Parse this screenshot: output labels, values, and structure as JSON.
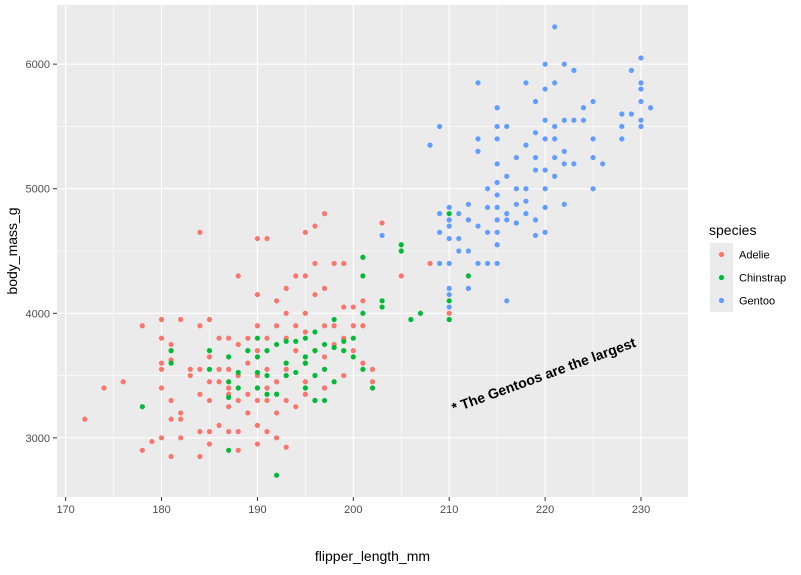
{
  "chart_data": {
    "type": "scatter",
    "title": "",
    "xlabel": "flipper_length_mm",
    "ylabel": "body_mass_g",
    "xlim": [
      169.1,
      234.9
    ],
    "ylim": [
      2525,
      6475
    ],
    "x_ticks": [
      170,
      180,
      190,
      200,
      210,
      220,
      230
    ],
    "y_ticks": [
      3000,
      4000,
      5000,
      6000
    ],
    "grid": true,
    "legend": {
      "title": "species",
      "position": "right",
      "entries": [
        "Adelie",
        "Chinstrap",
        "Gentoo"
      ]
    },
    "annotation": {
      "text": "* The Gentoos are the largest",
      "x": 210.5,
      "y": 3200,
      "angle_deg": -20
    },
    "colors": {
      "Adelie": "#F8766D",
      "Chinstrap": "#00BA38",
      "Gentoo": "#619CFF",
      "panel": "#EBEBEB",
      "grid": "#FFFFFF"
    },
    "series": [
      {
        "name": "Adelie",
        "points": [
          [
            172,
            3150
          ],
          [
            174,
            3400
          ],
          [
            176,
            3450
          ],
          [
            178,
            3900
          ],
          [
            178,
            2900
          ],
          [
            179,
            2970
          ],
          [
            180,
            3950
          ],
          [
            180,
            3800
          ],
          [
            180,
            3600
          ],
          [
            180,
            3550
          ],
          [
            180,
            3400
          ],
          [
            180,
            3000
          ],
          [
            181,
            3750
          ],
          [
            181,
            3700
          ],
          [
            181,
            3625
          ],
          [
            181,
            3300
          ],
          [
            181,
            3150
          ],
          [
            181,
            2850
          ],
          [
            182,
            3950
          ],
          [
            182,
            3200
          ],
          [
            182,
            3150
          ],
          [
            182,
            3000
          ],
          [
            183,
            3550
          ],
          [
            183,
            3500
          ],
          [
            184,
            4650
          ],
          [
            184,
            3550
          ],
          [
            184,
            3350
          ],
          [
            184,
            3050
          ],
          [
            184,
            2850
          ],
          [
            184,
            3900
          ],
          [
            185,
            3950
          ],
          [
            185,
            3650
          ],
          [
            185,
            3450
          ],
          [
            185,
            3300
          ],
          [
            185,
            3050
          ],
          [
            185,
            2950
          ],
          [
            186,
            3800
          ],
          [
            186,
            3550
          ],
          [
            186,
            3450
          ],
          [
            186,
            3100
          ],
          [
            187,
            3800
          ],
          [
            187,
            3550
          ],
          [
            187,
            3400
          ],
          [
            187,
            3250
          ],
          [
            187,
            3350
          ],
          [
            187,
            3050
          ],
          [
            188,
            4300
          ],
          [
            188,
            3750
          ],
          [
            188,
            3500
          ],
          [
            188,
            3300
          ],
          [
            188,
            3050
          ],
          [
            188,
            2900
          ],
          [
            189,
            3800
          ],
          [
            189,
            3600
          ],
          [
            189,
            3350
          ],
          [
            189,
            3200
          ],
          [
            190,
            4600
          ],
          [
            190,
            4150
          ],
          [
            190,
            3900
          ],
          [
            190,
            3700
          ],
          [
            190,
            3500
          ],
          [
            190,
            3400
          ],
          [
            190,
            3300
          ],
          [
            190,
            3100
          ],
          [
            190,
            2950
          ],
          [
            191,
            4600
          ],
          [
            191,
            3800
          ],
          [
            191,
            3550
          ],
          [
            191,
            3400
          ],
          [
            191,
            3300
          ],
          [
            191,
            3050
          ],
          [
            192,
            3450
          ],
          [
            192,
            3200
          ],
          [
            192,
            3000
          ],
          [
            192,
            3900
          ],
          [
            192,
            4100
          ],
          [
            193,
            4200
          ],
          [
            193,
            4000
          ],
          [
            193,
            3800
          ],
          [
            193,
            3550
          ],
          [
            193,
            3500
          ],
          [
            193,
            3300
          ],
          [
            193,
            2925
          ],
          [
            194,
            4300
          ],
          [
            194,
            3900
          ],
          [
            194,
            3700
          ],
          [
            194,
            3250
          ],
          [
            195,
            4650
          ],
          [
            195,
            4300
          ],
          [
            195,
            4000
          ],
          [
            195,
            3850
          ],
          [
            195,
            3350
          ],
          [
            195,
            3600
          ],
          [
            195,
            3450
          ],
          [
            196,
            4700
          ],
          [
            196,
            4400
          ],
          [
            196,
            4150
          ],
          [
            196,
            3700
          ],
          [
            196,
            3500
          ],
          [
            196,
            3300
          ],
          [
            197,
            4800
          ],
          [
            197,
            4200
          ],
          [
            197,
            3900
          ],
          [
            197,
            3650
          ],
          [
            197,
            3400
          ],
          [
            198,
            4400
          ],
          [
            198,
            3900
          ],
          [
            198,
            3750
          ],
          [
            199,
            4400
          ],
          [
            199,
            4050
          ],
          [
            199,
            3800
          ],
          [
            199,
            3500
          ],
          [
            200,
            4050
          ],
          [
            200,
            3900
          ],
          [
            200,
            3700
          ],
          [
            201,
            4100
          ],
          [
            201,
            3900
          ],
          [
            201,
            3600
          ],
          [
            202,
            3550
          ],
          [
            202,
            3450
          ],
          [
            203,
            4725
          ],
          [
            205,
            4300
          ],
          [
            208,
            4400
          ],
          [
            210,
            4000
          ],
          [
            210,
            3950
          ]
        ]
      },
      {
        "name": "Chinstrap",
        "points": [
          [
            178,
            3250
          ],
          [
            181,
            3700
          ],
          [
            181,
            3600
          ],
          [
            185,
            3700
          ],
          [
            185,
            3550
          ],
          [
            187,
            3650
          ],
          [
            187,
            3450
          ],
          [
            187,
            3325
          ],
          [
            187,
            2900
          ],
          [
            188,
            3525
          ],
          [
            188,
            3400
          ],
          [
            189,
            3700
          ],
          [
            190,
            3800
          ],
          [
            190,
            3650
          ],
          [
            190,
            3525
          ],
          [
            190,
            3400
          ],
          [
            191,
            3700
          ],
          [
            191,
            3500
          ],
          [
            191,
            3350
          ],
          [
            192,
            3750
          ],
          [
            192,
            3350
          ],
          [
            192,
            2700
          ],
          [
            193,
            3775
          ],
          [
            193,
            3600
          ],
          [
            193,
            3500
          ],
          [
            194,
            3775
          ],
          [
            194,
            3525
          ],
          [
            195,
            3800
          ],
          [
            195,
            3650
          ],
          [
            195,
            3600
          ],
          [
            195,
            3400
          ],
          [
            196,
            3850
          ],
          [
            196,
            3700
          ],
          [
            196,
            3500
          ],
          [
            196,
            3300
          ],
          [
            197,
            3750
          ],
          [
            197,
            3550
          ],
          [
            197,
            3300
          ],
          [
            198,
            3950
          ],
          [
            198,
            3725
          ],
          [
            198,
            3450
          ],
          [
            199,
            3775
          ],
          [
            199,
            3700
          ],
          [
            200,
            3800
          ],
          [
            200,
            3650
          ],
          [
            201,
            4450
          ],
          [
            201,
            4300
          ],
          [
            201,
            4000
          ],
          [
            201,
            3550
          ],
          [
            202,
            3400
          ],
          [
            203,
            4100
          ],
          [
            203,
            4050
          ],
          [
            205,
            4550
          ],
          [
            205,
            4500
          ],
          [
            206,
            3950
          ],
          [
            207,
            4000
          ],
          [
            210,
            4800
          ],
          [
            210,
            4100
          ],
          [
            210,
            3950
          ],
          [
            212,
            4300
          ]
        ]
      },
      {
        "name": "Gentoo",
        "points": [
          [
            203,
            4625
          ],
          [
            208,
            5350
          ],
          [
            209,
            5500
          ],
          [
            209,
            4800
          ],
          [
            209,
            4650
          ],
          [
            209,
            4400
          ],
          [
            210,
            4850
          ],
          [
            210,
            4750
          ],
          [
            210,
            4700
          ],
          [
            210,
            4600
          ],
          [
            210,
            4400
          ],
          [
            210,
            4200
          ],
          [
            210,
            4150
          ],
          [
            210,
            4050
          ],
          [
            211,
            4800
          ],
          [
            211,
            4600
          ],
          [
            211,
            4500
          ],
          [
            212,
            4875
          ],
          [
            212,
            4750
          ],
          [
            212,
            4500
          ],
          [
            212,
            4200
          ],
          [
            213,
            5850
          ],
          [
            213,
            5400
          ],
          [
            213,
            5300
          ],
          [
            213,
            4700
          ],
          [
            213,
            4400
          ],
          [
            214,
            5000
          ],
          [
            214,
            4850
          ],
          [
            214,
            4650
          ],
          [
            214,
            4400
          ],
          [
            215,
            5650
          ],
          [
            215,
            5500
          ],
          [
            215,
            5400
          ],
          [
            215,
            5200
          ],
          [
            215,
            5050
          ],
          [
            215,
            4950
          ],
          [
            215,
            4850
          ],
          [
            215,
            4750
          ],
          [
            215,
            4650
          ],
          [
            215,
            4550
          ],
          [
            215,
            4400
          ],
          [
            216,
            5500
          ],
          [
            216,
            5100
          ],
          [
            216,
            4800
          ],
          [
            216,
            4750
          ],
          [
            216,
            4100
          ],
          [
            217,
            5250
          ],
          [
            217,
            5000
          ],
          [
            217,
            4875
          ],
          [
            217,
            4725
          ],
          [
            218,
            5850
          ],
          [
            218,
            5350
          ],
          [
            218,
            5000
          ],
          [
            218,
            4900
          ],
          [
            218,
            4800
          ],
          [
            219,
            5700
          ],
          [
            219,
            5450
          ],
          [
            219,
            5250
          ],
          [
            219,
            5150
          ],
          [
            219,
            4750
          ],
          [
            219,
            4625
          ],
          [
            220,
            6000
          ],
          [
            220,
            5800
          ],
          [
            220,
            5550
          ],
          [
            220,
            5400
          ],
          [
            220,
            5150
          ],
          [
            220,
            5000
          ],
          [
            220,
            4850
          ],
          [
            220,
            4650
          ],
          [
            221,
            6300
          ],
          [
            221,
            5850
          ],
          [
            221,
            5500
          ],
          [
            221,
            5400
          ],
          [
            221,
            5250
          ],
          [
            221,
            5100
          ],
          [
            222,
            6000
          ],
          [
            222,
            5550
          ],
          [
            222,
            5300
          ],
          [
            222,
            4875
          ],
          [
            222,
            5200
          ],
          [
            223,
            5950
          ],
          [
            223,
            5550
          ],
          [
            223,
            5200
          ],
          [
            224,
            5650
          ],
          [
            224,
            5550
          ],
          [
            225,
            5700
          ],
          [
            225,
            5400
          ],
          [
            225,
            5250
          ],
          [
            225,
            5000
          ],
          [
            226,
            5200
          ],
          [
            228,
            5600
          ],
          [
            228,
            5500
          ],
          [
            228,
            5400
          ],
          [
            229,
            5950
          ],
          [
            229,
            5600
          ],
          [
            230,
            6050
          ],
          [
            230,
            5850
          ],
          [
            230,
            5800
          ],
          [
            230,
            5700
          ],
          [
            230,
            5550
          ],
          [
            230,
            5500
          ],
          [
            231,
            5650
          ]
        ]
      }
    ]
  }
}
